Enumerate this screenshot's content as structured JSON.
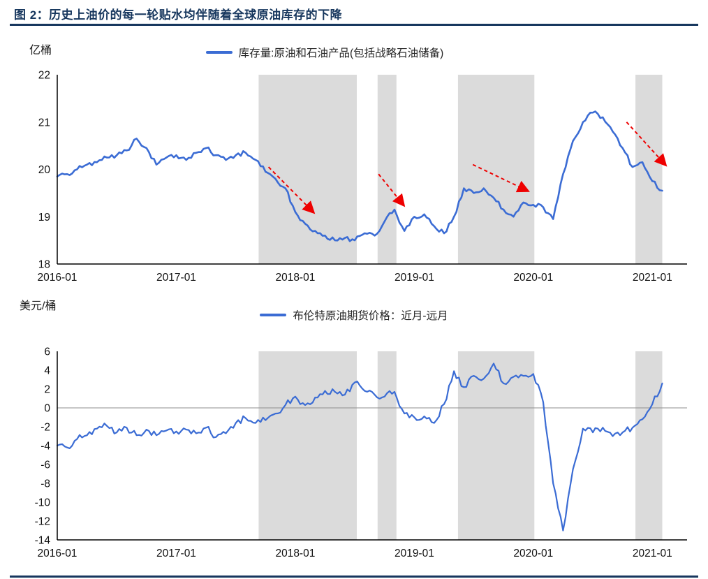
{
  "header": {
    "title": "图 2：历史上油价的每一轮贴水均伴随着全球原油库存的下降"
  },
  "colors": {
    "line": "#3B6CD4",
    "band": "#DBDBDB",
    "arrow": "#EE0000",
    "accent": "#17375E",
    "axis": "#000000",
    "zero_line": "#8C8C8C"
  },
  "chart_data": [
    {
      "type": "line",
      "unit": "亿桶",
      "legend": "库存量:原油和石油产品(包括战略石油储备)",
      "x_start": "2016-01",
      "x_interval": "monthly",
      "xlim": [
        0,
        63.5
      ],
      "ylim": [
        18,
        22
      ],
      "yticks": [
        22,
        21,
        20,
        19,
        18
      ],
      "xticks": [
        {
          "x": 0,
          "label": "2016-01"
        },
        {
          "x": 12,
          "label": "2017-01"
        },
        {
          "x": 24,
          "label": "2018-01"
        },
        {
          "x": 36,
          "label": "2019-01"
        },
        {
          "x": 48,
          "label": "2020-01"
        },
        {
          "x": 60,
          "label": "2021-01"
        }
      ],
      "values": [
        19.85,
        19.9,
        20.0,
        20.1,
        20.15,
        20.25,
        20.3,
        20.4,
        20.65,
        20.45,
        20.1,
        20.25,
        20.3,
        20.2,
        20.35,
        20.45,
        20.3,
        20.2,
        20.3,
        20.35,
        20.2,
        19.95,
        19.8,
        19.6,
        19.1,
        18.85,
        18.7,
        18.6,
        18.5,
        18.55,
        18.5,
        18.65,
        18.6,
        18.9,
        19.15,
        18.7,
        19.0,
        19.05,
        18.8,
        18.65,
        19.0,
        19.6,
        19.5,
        19.6,
        19.4,
        19.15,
        19.0,
        19.3,
        19.25,
        19.2,
        18.95,
        19.9,
        20.6,
        21.0,
        21.2,
        21.1,
        20.8,
        20.45,
        20.05,
        20.15,
        19.75,
        19.55
      ],
      "bands": [
        [
          20.3,
          30.2
        ],
        [
          32.3,
          34.2
        ],
        [
          40.4,
          48.1
        ],
        [
          58.3,
          61.0
        ]
      ],
      "arrows": [
        [
          21.3,
          20.05,
          25.8,
          19.1
        ],
        [
          32.4,
          19.9,
          34.9,
          19.25
        ],
        [
          41.9,
          20.1,
          47.4,
          19.55
        ],
        [
          57.4,
          21.0,
          61.3,
          20.1
        ]
      ],
      "zero_line": false
    },
    {
      "type": "line",
      "unit": "美元/桶",
      "legend": "布伦特原油期货价格：近月-远月",
      "x_start": "2016-01",
      "x_interval": "monthly",
      "xlim": [
        0,
        63.5
      ],
      "ylim": [
        -14,
        6
      ],
      "yticks": [
        6,
        4,
        2,
        0,
        -2,
        -4,
        -6,
        -8,
        -10,
        -12,
        -14
      ],
      "xticks": [
        {
          "x": 0,
          "label": "2016-01"
        },
        {
          "x": 12,
          "label": "2017-01"
        },
        {
          "x": 24,
          "label": "2018-01"
        },
        {
          "x": 36,
          "label": "2019-01"
        },
        {
          "x": 48,
          "label": "2020-01"
        },
        {
          "x": 60,
          "label": "2021-01"
        }
      ],
      "values": [
        -4.0,
        -4.2,
        -3.3,
        -2.9,
        -2.2,
        -1.9,
        -2.6,
        -2.1,
        -2.9,
        -2.3,
        -2.9,
        -2.4,
        -2.5,
        -2.3,
        -2.7,
        -2.1,
        -3.1,
        -2.7,
        -1.6,
        -1.1,
        -1.6,
        -1.3,
        -0.6,
        0.3,
        1.2,
        0.3,
        1.1,
        1.8,
        1.7,
        1.4,
        2.7,
        1.8,
        1.4,
        1.2,
        1.7,
        -0.6,
        -1.0,
        -0.9,
        -1.6,
        0.4,
        3.9,
        2.2,
        3.4,
        3.1,
        4.7,
        2.6,
        3.3,
        3.4,
        3.6,
        0.6,
        -8.0,
        -13.0,
        -6.5,
        -2.2,
        -2.6,
        -2.1,
        -3.0,
        -2.6,
        -2.1,
        -1.2,
        0.4,
        2.6
      ],
      "bands": [
        [
          20.3,
          30.2
        ],
        [
          32.3,
          34.2
        ],
        [
          40.4,
          48.1
        ],
        [
          58.3,
          61.0
        ]
      ],
      "arrows": [],
      "zero_line": true
    }
  ]
}
